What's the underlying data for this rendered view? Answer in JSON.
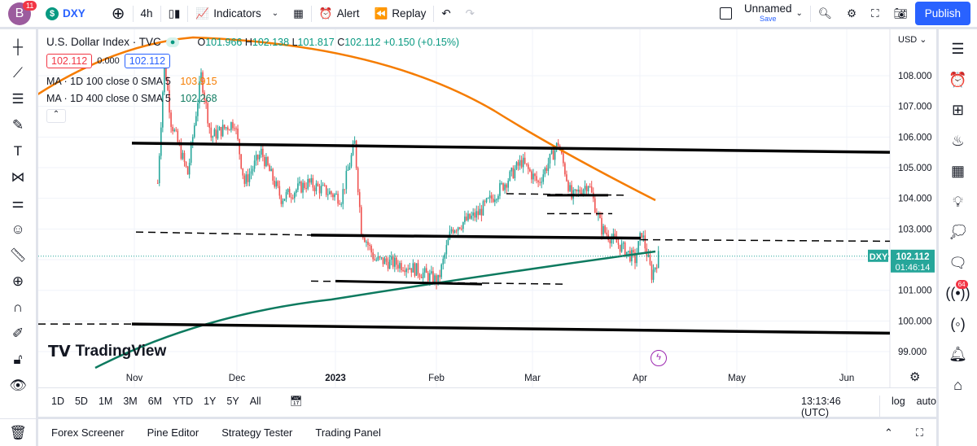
{
  "header": {
    "avatar_letter": "B",
    "avatar_badge": "11",
    "symbol": "DXY",
    "interval": "4h",
    "indicators": "Indicators",
    "alert": "Alert",
    "replay": "Replay",
    "layout_name": "Unnamed",
    "layout_save": "Save",
    "publish": "Publish"
  },
  "legend": {
    "title": "U.S. Dollar Index · TVC",
    "o_label": "O",
    "o": "101.966",
    "h_label": "H",
    "h": "102.138",
    "l_label": "L",
    "l": "101.817",
    "c_label": "C",
    "c": "102.112",
    "change": "+0.150 (+0.15%)",
    "bid": "102.112",
    "spread": "0.000",
    "ask": "102.112",
    "ma1_label": "MA · 1D 100 close 0 SMA 5",
    "ma1_value": "103.915",
    "ma2_label": "MA · 1D 400 close 0 SMA 5",
    "ma2_value": "102.268"
  },
  "price_axis": {
    "currency": "USD",
    "ticks": [
      "108.000",
      "107.000",
      "106.000",
      "105.000",
      "104.000",
      "103.000",
      "101.000",
      "100.000",
      "99.000"
    ],
    "last_symbol": "DXY",
    "last_price": "102.112",
    "countdown": "01:46:14"
  },
  "time_axis": {
    "labels": [
      "Nov",
      "Dec",
      "2023",
      "Feb",
      "Mar",
      "Apr",
      "May",
      "Jun"
    ]
  },
  "watermark": "TradingView",
  "timeframes": [
    "1D",
    "5D",
    "1M",
    "3M",
    "6M",
    "YTD",
    "1Y",
    "5Y",
    "All"
  ],
  "clock": "13:13:46 (UTC)",
  "scale_log": "log",
  "scale_auto": "auto",
  "bottom_tabs": [
    "Forex Screener",
    "Pine Editor",
    "Strategy Tester",
    "Trading Panel"
  ],
  "colors": {
    "up": "#26a69a",
    "down": "#ef5350",
    "ma100": "#f57c00",
    "ma400": "#0d7a5f",
    "accent": "#2962ff"
  },
  "notification_badge": "64",
  "price_path": [
    [
      7,
      104.5
    ],
    [
      9,
      108.5
    ],
    [
      11,
      106.5
    ],
    [
      16,
      104.8
    ],
    [
      20,
      108
    ],
    [
      23,
      106
    ],
    [
      30,
      106.5
    ],
    [
      33,
      104.5
    ],
    [
      38,
      105.5
    ],
    [
      44,
      104
    ],
    [
      52,
      104.5
    ],
    [
      62,
      104
    ],
    [
      66,
      105.8
    ],
    [
      68,
      103
    ],
    [
      72,
      102
    ],
    [
      82,
      101.8
    ],
    [
      91,
      101.3
    ],
    [
      95,
      103
    ],
    [
      103,
      103.5
    ],
    [
      111,
      104.5
    ],
    [
      116,
      105.2
    ],
    [
      121,
      104.5
    ],
    [
      127,
      105.8
    ],
    [
      131,
      104
    ],
    [
      136,
      104.5
    ],
    [
      140,
      103
    ],
    [
      145,
      102.5
    ],
    [
      150,
      102
    ],
    [
      152,
      102.9
    ],
    [
      155,
      101.5
    ],
    [
      157,
      102.1
    ]
  ]
}
